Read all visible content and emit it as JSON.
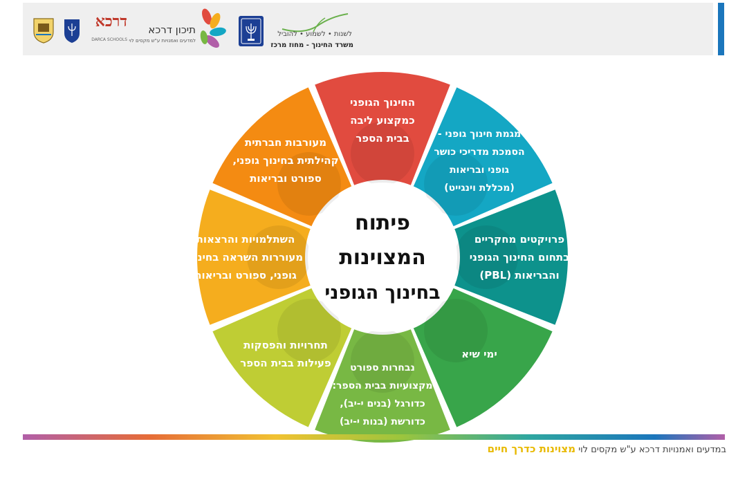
{
  "header": {
    "ministry_slogan": "לשנות • לשמוע • להוביל",
    "ministry_name": "משרד החינוך - מחוז מרכז",
    "school_name": "תיכון דרכא",
    "school_subtitle": "למדעים ואמנויות ע\"ש מקסים לוי",
    "network_name": "דרכא",
    "network_subtitle": "DARCA SCHOOLS",
    "colors": {
      "bar": "#efefef",
      "accent": "#1b76bc",
      "emblem": "#1c3f94"
    }
  },
  "diagram": {
    "center_title": [
      "פיתוח",
      "המצוינות",
      "בחינוך הגופני"
    ],
    "segments": [
      {
        "lines": [
          "החינוך הגופני",
          "כמקצוע ליבה",
          "בבית הספר"
        ],
        "color": "#e14b3f"
      },
      {
        "lines": [
          "מגמת חינוך גופני -",
          "הסמכת מדריכי כושר",
          "גופני ובריאות",
          "(מכללת וינגייט)"
        ],
        "color": "#14a7c4"
      },
      {
        "lines": [
          "פרויקטים מחקריים",
          "בתחום החינוך הגופני",
          "והבריאות (PBL)"
        ],
        "color": "#0d928c"
      },
      {
        "lines": [
          "ימי שיא"
        ],
        "color": "#38a54a"
      },
      {
        "lines": [
          "נבחרות ספורט",
          "מקצועיות בבית הספר:",
          "כדורגל (בנים י-יב),",
          "כדורשת (בנות י-יב)"
        ],
        "color": "#78b844"
      },
      {
        "lines": [
          "תחרויות והפסקות",
          "פעילות בבית הספר"
        ],
        "color": "#bfcd34"
      },
      {
        "lines": [
          "השתלמויות והרצאות",
          "מעוררות השראה בחינוך",
          "גופני, ספורט ובריאות"
        ],
        "color": "#f5ad1e"
      },
      {
        "lines": [
          "מעורבות חברתית",
          "קהילתית בחינוך גופני,",
          "ספורט ובריאות"
        ],
        "color": "#f48b12"
      }
    ]
  },
  "footer": {
    "text": "במדעים ואמנויות דרכא ע\"ש מקסים לוי",
    "tagline": "מצוינות כדרך חיים"
  }
}
